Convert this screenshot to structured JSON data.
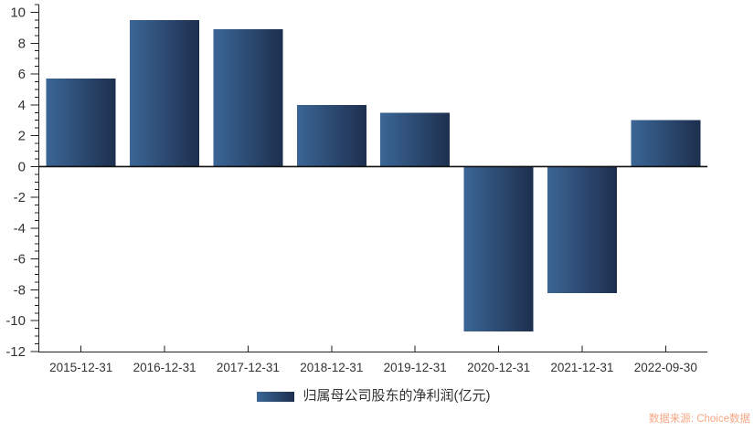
{
  "chart_data": {
    "type": "bar",
    "title": "",
    "xlabel": "",
    "ylabel": "",
    "categories": [
      "2015-12-31",
      "2016-12-31",
      "2017-12-31",
      "2018-12-31",
      "2019-12-31",
      "2020-12-31",
      "2021-12-31",
      "2022-09-30"
    ],
    "series": [
      {
        "name": "归属母公司股东的净利润(亿元)",
        "values": [
          5.7,
          9.5,
          8.9,
          4.0,
          3.5,
          -10.7,
          -8.2,
          3.0
        ]
      }
    ],
    "ylim": [
      -12,
      10
    ],
    "yticks": [
      10,
      8,
      6,
      4,
      2,
      0,
      -2,
      -4,
      -6,
      -8,
      -10,
      -12
    ],
    "y_minor_tick_step": 0.5,
    "grid": false,
    "legend_position": "bottom",
    "style": {
      "bar_gradient_left": "#3B6696",
      "bar_gradient_right": "#1D2F4E",
      "axis_color": "#222222",
      "zero_line_color": "#111111",
      "tick_label_color": "#333333"
    }
  },
  "source_note": {
    "text": "数据来源: Choice数据",
    "color": "#F6A785"
  }
}
